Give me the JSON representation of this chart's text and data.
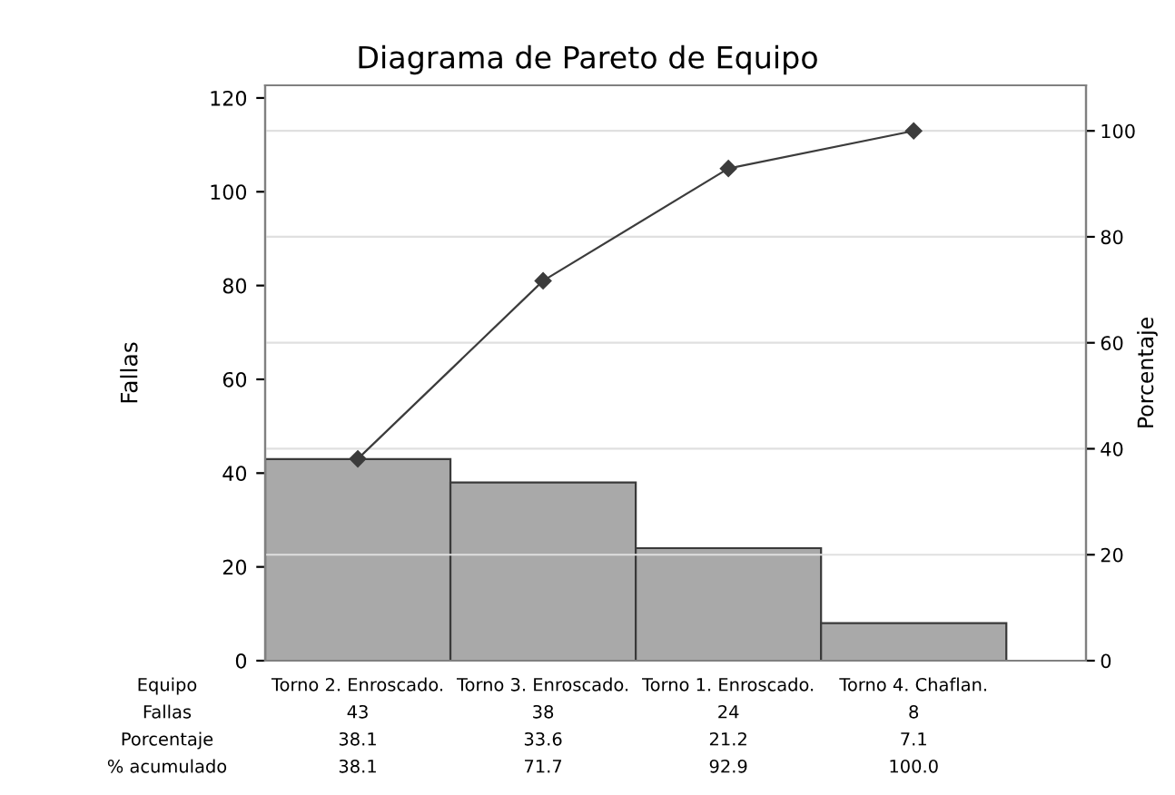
{
  "chart_data": {
    "type": "bar",
    "title": "Diagrama de Pareto de Equipo",
    "xlabel": "Equipo",
    "ylabel": "Fallas",
    "y2label": "Porcentaje",
    "categories": [
      "Torno 2. Enroscado.",
      "Torno 3. Enroscado.",
      "Torno 1. Enroscado.",
      "Torno 4. Chaflan."
    ],
    "series": [
      {
        "color": "#a9a9a9",
        "values": [
          43,
          38,
          24,
          8
        ],
        "value_labels": [
          "43",
          "38",
          "24",
          "8"
        ]
      },
      {
        "type": "line",
        "axis": "y2",
        "color": "#3c3c3c",
        "values": [
          38.1,
          71.7,
          92.9,
          100.0
        ],
        "value_labels": [
          "38.1",
          "71.7",
          "92.9",
          "100.0"
        ]
      }
    ],
    "annotations": [
      "Fallas",
      "Porcentaje",
      "% acumulado",
      "38.1",
      "33.6",
      "21.2",
      "7.1"
    ],
    "ylim": [
      0,
      122.7
    ],
    "yticks": [
      0,
      20,
      40,
      60,
      80,
      100,
      120
    ],
    "y2lim": [
      0,
      108.6
    ],
    "y2ticks": [
      0,
      20,
      40,
      60,
      80,
      100
    ],
    "grid": "y2",
    "marker": "diamond",
    "line_style": "solid",
    "legend": false
  }
}
